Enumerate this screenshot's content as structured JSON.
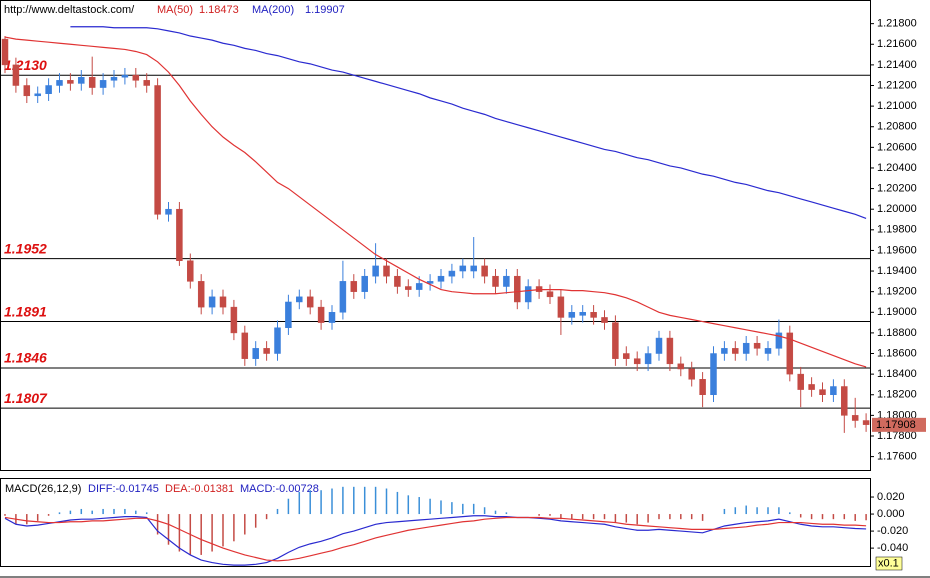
{
  "chart_data": [
    {
      "type": "candlestick",
      "title": "http://www.deltastock.com/",
      "ylim": [
        1.1747,
        1.2201
      ],
      "yticks": [
        {
          "value": 1.176,
          "label": "1.17600"
        },
        {
          "value": 1.178,
          "label": "1.17800"
        },
        {
          "value": 1.18,
          "label": "1.18000"
        },
        {
          "value": 1.182,
          "label": "1.18200"
        },
        {
          "value": 1.184,
          "label": "1.18400"
        },
        {
          "value": 1.186,
          "label": "1.18600"
        },
        {
          "value": 1.188,
          "label": "1.18800"
        },
        {
          "value": 1.19,
          "label": "1.19000"
        },
        {
          "value": 1.192,
          "label": "1.19200"
        },
        {
          "value": 1.194,
          "label": "1.19400"
        },
        {
          "value": 1.196,
          "label": "1.19600"
        },
        {
          "value": 1.198,
          "label": "1.19800"
        },
        {
          "value": 1.2,
          "label": "1.20000"
        },
        {
          "value": 1.202,
          "label": "1.20200"
        },
        {
          "value": 1.204,
          "label": "1.20400"
        },
        {
          "value": 1.206,
          "label": "1.20600"
        },
        {
          "value": 1.208,
          "label": "1.20800"
        },
        {
          "value": 1.21,
          "label": "1.21000"
        },
        {
          "value": 1.212,
          "label": "1.21200"
        },
        {
          "value": 1.214,
          "label": "1.21400"
        },
        {
          "value": 1.216,
          "label": "1.21600"
        },
        {
          "value": 1.218,
          "label": "1.21800"
        }
      ],
      "levels": [
        {
          "value": 1.213,
          "label": "1.2130"
        },
        {
          "value": 1.1952,
          "label": "1.1952"
        },
        {
          "value": 1.1891,
          "label": "1.1891"
        },
        {
          "value": 1.1846,
          "label": "1.1846"
        },
        {
          "value": 1.1807,
          "label": "1.1807"
        }
      ],
      "last_price": 1.17908,
      "candles": {
        "up_color": "#3a7fdc",
        "down_color": "#c44a44",
        "values": [
          [
            1.2165,
            1.2168,
            1.2132,
            1.214
          ],
          [
            1.214,
            1.2147,
            1.2113,
            1.212
          ],
          [
            1.212,
            1.2127,
            1.2103,
            1.211
          ],
          [
            1.211,
            1.2119,
            1.2103,
            1.2112
          ],
          [
            1.2112,
            1.2127,
            1.2105,
            1.212
          ],
          [
            1.212,
            1.2132,
            1.2113,
            1.2125
          ],
          [
            1.2125,
            1.2132,
            1.2115,
            1.2122
          ],
          [
            1.2122,
            1.2135,
            1.2115,
            1.2128
          ],
          [
            1.2128,
            1.2148,
            1.2111,
            1.2118
          ],
          [
            1.2118,
            1.2132,
            1.2111,
            1.2125
          ],
          [
            1.2125,
            1.2135,
            1.2118,
            1.2128
          ],
          [
            1.2128,
            1.2137,
            1.2121,
            1.213
          ],
          [
            1.213,
            1.2137,
            1.2118,
            1.2125
          ],
          [
            1.2125,
            1.2132,
            1.2113,
            1.212
          ],
          [
            1.212,
            1.2127,
            1.199,
            1.1995
          ],
          [
            1.1995,
            1.2007,
            1.1988,
            1.2
          ],
          [
            1.2,
            1.2007,
            1.1945,
            1.195
          ],
          [
            1.195,
            1.1957,
            1.1923,
            1.193
          ],
          [
            1.193,
            1.1937,
            1.1898,
            1.1905
          ],
          [
            1.1905,
            1.1922,
            1.1898,
            1.1915
          ],
          [
            1.1915,
            1.1922,
            1.1898,
            1.1905
          ],
          [
            1.1905,
            1.1912,
            1.1873,
            1.188
          ],
          [
            1.188,
            1.1887,
            1.1848,
            1.1855
          ],
          [
            1.1855,
            1.1872,
            1.1848,
            1.1865
          ],
          [
            1.1865,
            1.1872,
            1.1853,
            1.186
          ],
          [
            1.186,
            1.1892,
            1.1853,
            1.1885
          ],
          [
            1.1885,
            1.1917,
            1.1878,
            1.191
          ],
          [
            1.191,
            1.1922,
            1.1903,
            1.1915
          ],
          [
            1.1915,
            1.1922,
            1.1898,
            1.1905
          ],
          [
            1.1905,
            1.1912,
            1.1883,
            1.189
          ],
          [
            1.189,
            1.1907,
            1.1883,
            1.19
          ],
          [
            1.19,
            1.195,
            1.1893,
            1.193
          ],
          [
            1.193,
            1.1937,
            1.1913,
            1.192
          ],
          [
            1.192,
            1.1942,
            1.1913,
            1.1935
          ],
          [
            1.1935,
            1.1967,
            1.1928,
            1.1945
          ],
          [
            1.1945,
            1.1952,
            1.1928,
            1.1935
          ],
          [
            1.1935,
            1.1942,
            1.1918,
            1.1925
          ],
          [
            1.1925,
            1.1932,
            1.1915,
            1.1922
          ],
          [
            1.1922,
            1.1935,
            1.1915,
            1.1928
          ],
          [
            1.1928,
            1.1937,
            1.1921,
            1.193
          ],
          [
            1.193,
            1.1942,
            1.1923,
            1.1935
          ],
          [
            1.1935,
            1.1947,
            1.1928,
            1.194
          ],
          [
            1.194,
            1.1952,
            1.1933,
            1.1945
          ],
          [
            1.194,
            1.1973,
            1.1933,
            1.1945
          ],
          [
            1.1945,
            1.1952,
            1.1928,
            1.1935
          ],
          [
            1.1935,
            1.1942,
            1.1918,
            1.1925
          ],
          [
            1.1925,
            1.1942,
            1.1918,
            1.1935
          ],
          [
            1.1935,
            1.1942,
            1.1903,
            1.191
          ],
          [
            1.191,
            1.1932,
            1.1903,
            1.1925
          ],
          [
            1.1925,
            1.1932,
            1.1913,
            1.192
          ],
          [
            1.192,
            1.1927,
            1.1908,
            1.1915
          ],
          [
            1.1915,
            1.1922,
            1.1878,
            1.1895
          ],
          [
            1.1895,
            1.1907,
            1.1888,
            1.19
          ],
          [
            1.1897,
            1.1907,
            1.189,
            1.19
          ],
          [
            1.19,
            1.1907,
            1.1888,
            1.1895
          ],
          [
            1.1895,
            1.1902,
            1.1883,
            1.189
          ],
          [
            1.189,
            1.1897,
            1.1848,
            1.1855
          ],
          [
            1.186,
            1.1867,
            1.1848,
            1.1855
          ],
          [
            1.1855,
            1.1862,
            1.1843,
            1.185
          ],
          [
            1.185,
            1.1867,
            1.1843,
            1.186
          ],
          [
            1.186,
            1.1882,
            1.1853,
            1.1875
          ],
          [
            1.1875,
            1.1882,
            1.1843,
            1.185
          ],
          [
            1.185,
            1.1857,
            1.1838,
            1.1845
          ],
          [
            1.1845,
            1.1852,
            1.1828,
            1.1835
          ],
          [
            1.1835,
            1.1842,
            1.1808,
            1.182
          ],
          [
            1.182,
            1.1867,
            1.1813,
            1.186
          ],
          [
            1.186,
            1.1872,
            1.1853,
            1.1865
          ],
          [
            1.1865,
            1.1872,
            1.1853,
            1.186
          ],
          [
            1.186,
            1.1877,
            1.1853,
            1.187
          ],
          [
            1.187,
            1.1877,
            1.1858,
            1.1865
          ],
          [
            1.186,
            1.1872,
            1.1853,
            1.1865
          ],
          [
            1.1865,
            1.1893,
            1.1858,
            1.188
          ],
          [
            1.188,
            1.1887,
            1.1833,
            1.184
          ],
          [
            1.184,
            1.1847,
            1.1808,
            1.1825
          ],
          [
            1.183,
            1.1837,
            1.1818,
            1.1825
          ],
          [
            1.1825,
            1.1832,
            1.1813,
            1.182
          ],
          [
            1.182,
            1.1835,
            1.1813,
            1.1828
          ],
          [
            1.1828,
            1.1835,
            1.1783,
            1.18
          ],
          [
            1.18,
            1.1817,
            1.1788,
            1.1795
          ],
          [
            1.1795,
            1.1802,
            1.1784,
            1.1791
          ]
        ]
      },
      "series": [
        {
          "name": "MA(50)",
          "last": 1.18473,
          "color": "#e03333",
          "values": [
            1.2167,
            1.2165,
            1.2164,
            1.2163,
            1.2162,
            1.2161,
            1.216,
            1.2159,
            1.2158,
            1.2157,
            1.2156,
            1.2155,
            1.2153,
            1.215,
            1.2143,
            1.2133,
            1.212,
            1.2105,
            1.2092,
            1.208,
            1.207,
            1.2062,
            1.2055,
            1.2046,
            1.2036,
            1.2026,
            1.202,
            1.2012,
            1.2004,
            1.1996,
            1.1988,
            1.198,
            1.1972,
            1.1964,
            1.1956,
            1.195,
            1.1944,
            1.1938,
            1.1932,
            1.1927,
            1.1922,
            1.192,
            1.1919,
            1.1918,
            1.1918,
            1.1918,
            1.1919,
            1.192,
            1.1921,
            1.1922,
            1.1922,
            1.1922,
            1.1921,
            1.1921,
            1.192,
            1.1919,
            1.1917,
            1.1914,
            1.191,
            1.1905,
            1.19,
            1.1897,
            1.1895,
            1.1893,
            1.1891,
            1.1889,
            1.1887,
            1.1885,
            1.1883,
            1.1881,
            1.1879,
            1.1877,
            1.1874,
            1.187,
            1.1866,
            1.1862,
            1.1858,
            1.1854,
            1.185,
            1.1847
          ]
        },
        {
          "name": "MA(200)",
          "last": 1.19907,
          "color": "#2a2ad0",
          "values": [
            null,
            null,
            null,
            null,
            null,
            null,
            1.2177,
            1.2177,
            1.2177,
            1.2177,
            1.2176,
            1.2176,
            1.2176,
            1.2176,
            1.2175,
            1.2173,
            1.2171,
            1.2168,
            1.2166,
            1.2164,
            1.2161,
            1.2159,
            1.2156,
            1.2154,
            1.2151,
            1.2149,
            1.2146,
            1.2143,
            1.2141,
            1.2138,
            1.2135,
            1.2133,
            1.213,
            1.2127,
            1.2124,
            1.2121,
            1.2118,
            1.2115,
            1.2112,
            1.2108,
            1.2105,
            1.2102,
            1.2098,
            1.2095,
            1.2092,
            1.2088,
            1.2085,
            1.2082,
            1.2079,
            1.2076,
            1.2073,
            1.207,
            1.2067,
            1.2064,
            1.2061,
            1.2058,
            1.2056,
            1.2053,
            1.205,
            1.2048,
            1.2045,
            1.2042,
            1.204,
            1.2037,
            1.2034,
            1.2032,
            1.2029,
            1.2026,
            1.2024,
            1.2021,
            1.2018,
            1.2016,
            1.2013,
            1.201,
            1.2007,
            1.2004,
            1.2001,
            1.1998,
            1.1995,
            1.1991
          ]
        }
      ]
    },
    {
      "type": "macd",
      "title": "MACD(26,12,9)",
      "scale_label": "x0.1",
      "ylim": [
        -0.061,
        0.04
      ],
      "yticks": [
        {
          "value": 0.02,
          "label": "0.020"
        },
        {
          "value": 0,
          "label": "0.000"
        },
        {
          "value": -0.02,
          "label": "-0.020"
        },
        {
          "value": -0.04,
          "label": "-0.040"
        }
      ],
      "series": [
        {
          "label": "DIFF:-0.01745",
          "kind": "line",
          "color": "#2a2ad0",
          "values": [
            -0.005,
            -0.012,
            -0.014,
            -0.013,
            -0.011,
            -0.009,
            -0.007,
            -0.006,
            -0.006,
            -0.005,
            -0.004,
            -0.003,
            -0.003,
            -0.004,
            -0.02,
            -0.03,
            -0.04,
            -0.048,
            -0.054,
            -0.057,
            -0.059,
            -0.06,
            -0.06,
            -0.059,
            -0.057,
            -0.052,
            -0.045,
            -0.039,
            -0.035,
            -0.032,
            -0.028,
            -0.023,
            -0.02,
            -0.016,
            -0.012,
            -0.01,
            -0.009,
            -0.008,
            -0.007,
            -0.006,
            -0.005,
            -0.004,
            -0.003,
            -0.002,
            -0.002,
            -0.003,
            -0.003,
            -0.004,
            -0.004,
            -0.005,
            -0.006,
            -0.008,
            -0.009,
            -0.01,
            -0.011,
            -0.012,
            -0.015,
            -0.017,
            -0.019,
            -0.019,
            -0.018,
            -0.019,
            -0.02,
            -0.021,
            -0.022,
            -0.018,
            -0.014,
            -0.012,
            -0.01,
            -0.009,
            -0.008,
            -0.006,
            -0.009,
            -0.012,
            -0.014,
            -0.015,
            -0.015,
            -0.016,
            -0.017,
            -0.01745
          ]
        },
        {
          "label": "DEA:-0.01381",
          "kind": "line",
          "color": "#e03333",
          "values": [
            -0.004,
            -0.006,
            -0.008,
            -0.009,
            -0.01,
            -0.01,
            -0.009,
            -0.009,
            -0.008,
            -0.008,
            -0.007,
            -0.006,
            -0.005,
            -0.005,
            -0.008,
            -0.012,
            -0.018,
            -0.024,
            -0.03,
            -0.035,
            -0.04,
            -0.044,
            -0.048,
            -0.051,
            -0.054,
            -0.055,
            -0.054,
            -0.052,
            -0.049,
            -0.046,
            -0.043,
            -0.039,
            -0.036,
            -0.032,
            -0.028,
            -0.025,
            -0.022,
            -0.019,
            -0.017,
            -0.015,
            -0.013,
            -0.011,
            -0.009,
            -0.008,
            -0.006,
            -0.005,
            -0.004,
            -0.004,
            -0.004,
            -0.004,
            -0.005,
            -0.005,
            -0.006,
            -0.007,
            -0.008,
            -0.009,
            -0.01,
            -0.012,
            -0.013,
            -0.014,
            -0.015,
            -0.016,
            -0.017,
            -0.018,
            -0.018,
            -0.018,
            -0.017,
            -0.016,
            -0.015,
            -0.013,
            -0.012,
            -0.01,
            -0.01,
            -0.01,
            -0.011,
            -0.012,
            -0.012,
            -0.013,
            -0.013,
            -0.01381
          ]
        },
        {
          "label": "MACD:-0.00728",
          "kind": "bar",
          "up_color": "#3a8fd8",
          "down_color": "#c44a44",
          "values": [
            -0.002,
            -0.012,
            -0.012,
            -0.008,
            -0.002,
            0.002,
            0.004,
            0.006,
            0.004,
            0.006,
            0.006,
            0.006,
            0.004,
            0.002,
            -0.024,
            -0.036,
            -0.044,
            -0.048,
            -0.048,
            -0.044,
            -0.038,
            -0.032,
            -0.024,
            -0.016,
            -0.006,
            0.006,
            0.018,
            0.026,
            0.028,
            0.028,
            0.03,
            0.032,
            0.032,
            0.032,
            0.032,
            0.03,
            0.026,
            0.022,
            0.02,
            0.018,
            0.016,
            0.014,
            0.012,
            0.012,
            0.008,
            0.004,
            0.002,
            0,
            0,
            -0.002,
            -0.002,
            -0.006,
            -0.006,
            -0.006,
            -0.006,
            -0.006,
            -0.01,
            -0.01,
            -0.012,
            -0.01,
            -0.006,
            -0.006,
            -0.006,
            -0.006,
            -0.008,
            0,
            0.006,
            0.008,
            0.01,
            0.008,
            0.008,
            0.008,
            0.002,
            -0.004,
            -0.006,
            -0.006,
            -0.006,
            -0.006,
            -0.008,
            -0.00728
          ]
        }
      ]
    }
  ]
}
